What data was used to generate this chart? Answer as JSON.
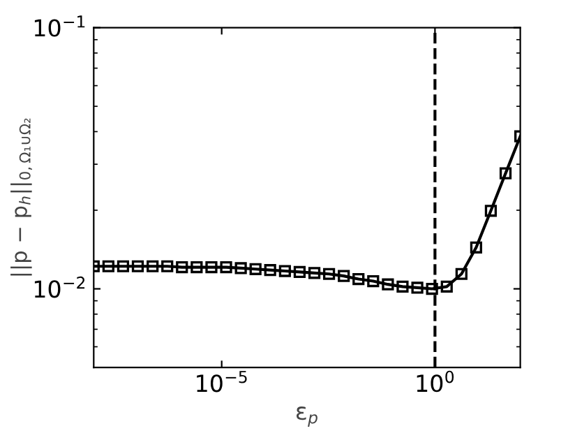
{
  "chart_data": {
    "type": "line",
    "xlabel": "ε$_{p}$",
    "ylabel": "||p − p$_{h}$||$_{0,Ω₁∪Ω₂}$",
    "log": "xy",
    "marker": "square",
    "line_style": "solid",
    "grid": false,
    "legend": false,
    "x": [
      1e-08,
      2.21e-08,
      4.89e-08,
      1.08e-07,
      2.4e-07,
      5.3e-07,
      1.17e-06,
      2.59e-06,
      5.74e-06,
      1.27e-05,
      2.81e-05,
      6.21e-05,
      0.000137,
      0.000304,
      0.000672,
      0.00149,
      0.00329,
      0.00728,
      0.0161,
      0.0356,
      0.0788,
      0.174,
      0.386,
      0.853,
      1.89,
      4.18,
      9.24,
      20.4,
      45.2,
      100
    ],
    "series": [
      {
        "color": "#000000",
        "values": [
          0.0122,
          0.0122,
          0.0122,
          0.0122,
          0.0122,
          0.0122,
          0.0121,
          0.0121,
          0.0121,
          0.0121,
          0.012,
          0.0119,
          0.0118,
          0.0117,
          0.0116,
          0.0115,
          0.0114,
          0.0112,
          0.0109,
          0.0107,
          0.0104,
          0.0102,
          0.0101,
          0.01,
          0.0102,
          0.0114,
          0.0144,
          0.0199,
          0.0277,
          0.0384
        ]
      }
    ],
    "xlim": [
      1e-08,
      100
    ],
    "xticks": [
      {
        "value": 1e-05,
        "label": "10$^{−5}$"
      },
      {
        "value": 1,
        "label": "10$^{0}$"
      }
    ],
    "ylim": [
      0.005,
      0.1
    ],
    "yticks": [
      {
        "value": 0.006,
        "label": null
      },
      {
        "value": 0.007,
        "label": null
      },
      {
        "value": 0.008,
        "label": null
      },
      {
        "value": 0.009,
        "label": null
      },
      {
        "value": 0.01,
        "label": "10$^{−2}$"
      },
      {
        "value": 0.02,
        "label": null
      },
      {
        "value": 0.03,
        "label": null
      },
      {
        "value": 0.04,
        "label": null
      },
      {
        "value": 0.05,
        "label": null
      },
      {
        "value": 0.06,
        "label": null
      },
      {
        "value": 0.07,
        "label": null
      },
      {
        "value": 0.08,
        "label": null
      },
      {
        "value": 0.09,
        "label": null
      },
      {
        "value": 0.1,
        "label": "10$^{−1}$"
      }
    ],
    "ref_lines": [
      {
        "axis": "x",
        "value": 1,
        "color": "#000000",
        "line_style": "dashed"
      }
    ]
  }
}
